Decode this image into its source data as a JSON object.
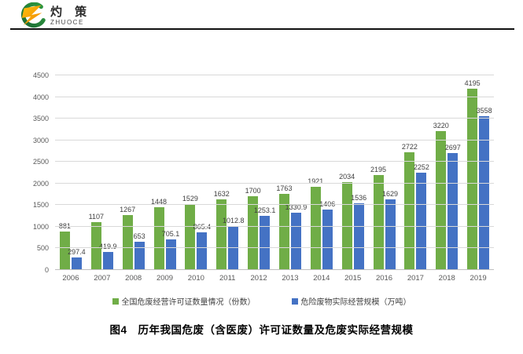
{
  "logo": {
    "company_cn": "灼 策",
    "company_en": "ZHUOCE",
    "orange_light": "#ffc20e",
    "orange_dark": "#f08300",
    "green": "#2f9a3f",
    "green_dark": "#1c6b34"
  },
  "chart_data": {
    "type": "bar",
    "title": "",
    "categories": [
      "2006",
      "2007",
      "2008",
      "2009",
      "2010",
      "2011",
      "2012",
      "2013",
      "2014",
      "2015",
      "2016",
      "2017",
      "2018",
      "2019"
    ],
    "series": [
      {
        "name": "全国危废经营许可证数量情况（份数）",
        "color": "#70ad47",
        "values": [
          881,
          1107,
          1267,
          1448,
          1529,
          1632,
          1700,
          1763,
          1921,
          2034,
          2195,
          2722,
          3220,
          4195
        ]
      },
      {
        "name": "危险废物实际经营规模（万吨）",
        "color": "#4472c4",
        "values": [
          297.4,
          419.9,
          653,
          705.1,
          865.4,
          1012.8,
          1253.1,
          1330.9,
          1406,
          1536,
          1629,
          2252,
          2697,
          3558
        ]
      }
    ],
    "xlabel": "",
    "ylabel": "",
    "ylim": [
      0,
      4500
    ],
    "yticks": [
      0,
      500,
      1000,
      1500,
      2000,
      2500,
      3000,
      3500,
      4000,
      4500
    ],
    "grid": true,
    "data_labels": true,
    "legend_position": "bottom",
    "gridline_color": "#d9d9d9",
    "axis_text_color": "#595959",
    "label_text_color": "#404040"
  },
  "caption": "图4　历年我国危废（含医废）许可证数量及危废实际经营规模"
}
